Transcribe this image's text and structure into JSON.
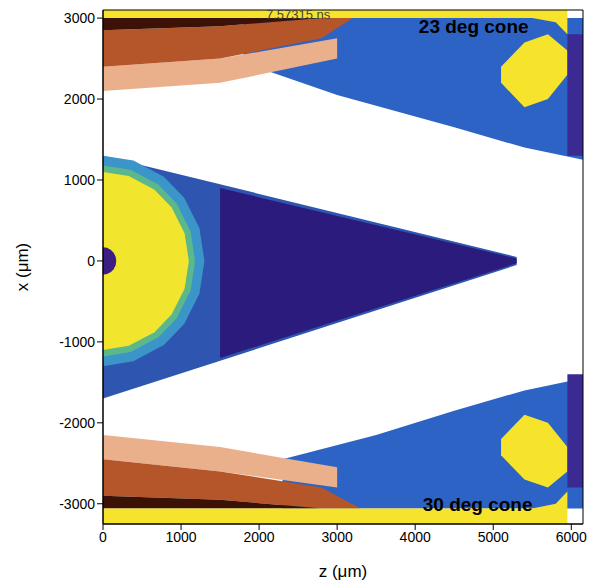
{
  "chart_data": {
    "type": "field_map",
    "xlabel": "z (μm)",
    "ylabel": "x (μm)",
    "xlim": [
      0,
      6150
    ],
    "ylim": [
      -3250,
      3100
    ],
    "xticks": [
      0,
      1000,
      2000,
      3000,
      4000,
      5000,
      6000
    ],
    "yticks": [
      -3000,
      -2000,
      -1000,
      0,
      1000,
      2000,
      3000
    ],
    "grid": false,
    "regions": [
      {
        "color": "#2d63c4",
        "z": [
          1800,
          3000,
          4500,
          5400,
          6150
        ],
        "lower": [
          2450,
          2050,
          1650,
          1400,
          1250
        ],
        "upper": [
          3000,
          3000,
          3000,
          3000,
          3000
        ]
      },
      {
        "color": "#eab08c",
        "z": [
          0,
          1500,
          3000
        ],
        "lower": [
          2100,
          2200,
          2500
        ],
        "upper": [
          2400,
          2500,
          2750
        ]
      },
      {
        "color": "#b5552a",
        "z": [
          0,
          1500,
          2800,
          3200
        ],
        "lower": [
          2400,
          2500,
          2750,
          3000
        ],
        "upper": [
          2850,
          2900,
          3000,
          3000
        ]
      },
      {
        "color": "#3d1206",
        "z": [
          0,
          1500,
          2800
        ],
        "lower": [
          2850,
          2900,
          3000
        ],
        "upper": [
          3000,
          3000,
          3000
        ]
      },
      {
        "color": "#f5e32c",
        "z": [
          0,
          5500,
          5800,
          5950
        ],
        "lower": [
          3000,
          3000,
          2950,
          2800
        ],
        "upper": [
          3100,
          3100,
          3100,
          3100
        ]
      },
      {
        "color": "#f5e32c",
        "z": [
          5100,
          5400,
          5700,
          5950
        ],
        "lower": [
          2200,
          1900,
          2000,
          2300
        ],
        "upper": [
          2400,
          2700,
          2800,
          2600
        ]
      },
      {
        "color": "#3b2a92",
        "z": [
          5950,
          6150
        ],
        "lower": [
          1300,
          1300
        ],
        "upper": [
          2800,
          2800
        ]
      },
      {
        "color": "#2d63c4",
        "z": [
          2300,
          3500,
          4500,
          5400,
          6150
        ],
        "lower": [
          -3060,
          -3060,
          -3060,
          -3060,
          -3060
        ],
        "upper": [
          -2450,
          -2150,
          -1850,
          -1600,
          -1450
        ]
      },
      {
        "color": "#eab08c",
        "z": [
          0,
          1500,
          3000
        ],
        "lower": [
          -2450,
          -2600,
          -2800
        ],
        "upper": [
          -2150,
          -2300,
          -2550
        ]
      },
      {
        "color": "#b5552a",
        "z": [
          0,
          1500,
          2800,
          3300
        ],
        "lower": [
          -2900,
          -2950,
          -3060,
          -3060
        ],
        "upper": [
          -2450,
          -2600,
          -2800,
          -3060
        ]
      },
      {
        "color": "#3d1206",
        "z": [
          0,
          1500,
          2800
        ],
        "lower": [
          -3060,
          -3060,
          -3060
        ],
        "upper": [
          -2900,
          -2950,
          -3060
        ]
      },
      {
        "color": "#f5e32c",
        "z": [
          0,
          5500,
          5800,
          5950
        ],
        "lower": [
          -3250,
          -3250,
          -3250,
          -3250
        ],
        "upper": [
          -3060,
          -3060,
          -3000,
          -2850
        ]
      },
      {
        "color": "#f5e32c",
        "z": [
          5100,
          5400,
          5700,
          5950
        ],
        "lower": [
          -2400,
          -2700,
          -2800,
          -2600
        ],
        "upper": [
          -2200,
          -1900,
          -2000,
          -2300
        ]
      },
      {
        "color": "#3b2a92",
        "z": [
          5950,
          6150
        ],
        "lower": [
          -2800,
          -2800
        ],
        "upper": [
          -1400,
          -1400
        ]
      },
      {
        "color": "#2e55b0",
        "z": [
          0,
          5300
        ],
        "lower": [
          -1700,
          -50
        ],
        "upper": [
          1300,
          50
        ]
      },
      {
        "color": "#2b1b7c",
        "z": [
          1500,
          5300
        ],
        "lower": [
          -1200,
          -30
        ],
        "upper": [
          900,
          30
        ]
      },
      {
        "color": "#3b95c8",
        "z": [
          0,
          390,
          780,
          1040,
          1235,
          1300
        ],
        "lower": [
          -1300,
          -1240,
          -1040,
          -780,
          -406,
          0
        ],
        "upper": [
          1300,
          1240,
          1040,
          780,
          406,
          0
        ]
      },
      {
        "color": "#5cb88a",
        "z": [
          0,
          354,
          708,
          944,
          1121,
          1180
        ],
        "lower": [
          -1180,
          -1126,
          -944,
          -708,
          -368,
          0
        ],
        "upper": [
          1180,
          1126,
          944,
          708,
          368,
          0
        ]
      },
      {
        "color": "#f2e52e",
        "z": [
          0,
          330,
          660,
          880,
          1045,
          1100
        ],
        "lower": [
          -1100,
          -1049,
          -880,
          -660,
          -343,
          0
        ],
        "upper": [
          1100,
          1049,
          880,
          660,
          343,
          0
        ]
      },
      {
        "color": "#3b1d84",
        "z": [
          0,
          51,
          102,
          136,
          162,
          170
        ],
        "lower": [
          -170,
          -162,
          -136,
          -102,
          -53,
          0
        ],
        "upper": [
          170,
          162,
          136,
          102,
          53,
          0
        ]
      }
    ],
    "annotations": [
      {
        "text": "7.57315 ns",
        "z": 2500,
        "x": 3040,
        "color": "#444444"
      },
      {
        "text": "23 deg cone",
        "z": 4750,
        "x": 2900,
        "color": "#000000"
      },
      {
        "text": "30 deg cone",
        "z": 4800,
        "x": -3000,
        "color": "#000000"
      }
    ]
  }
}
